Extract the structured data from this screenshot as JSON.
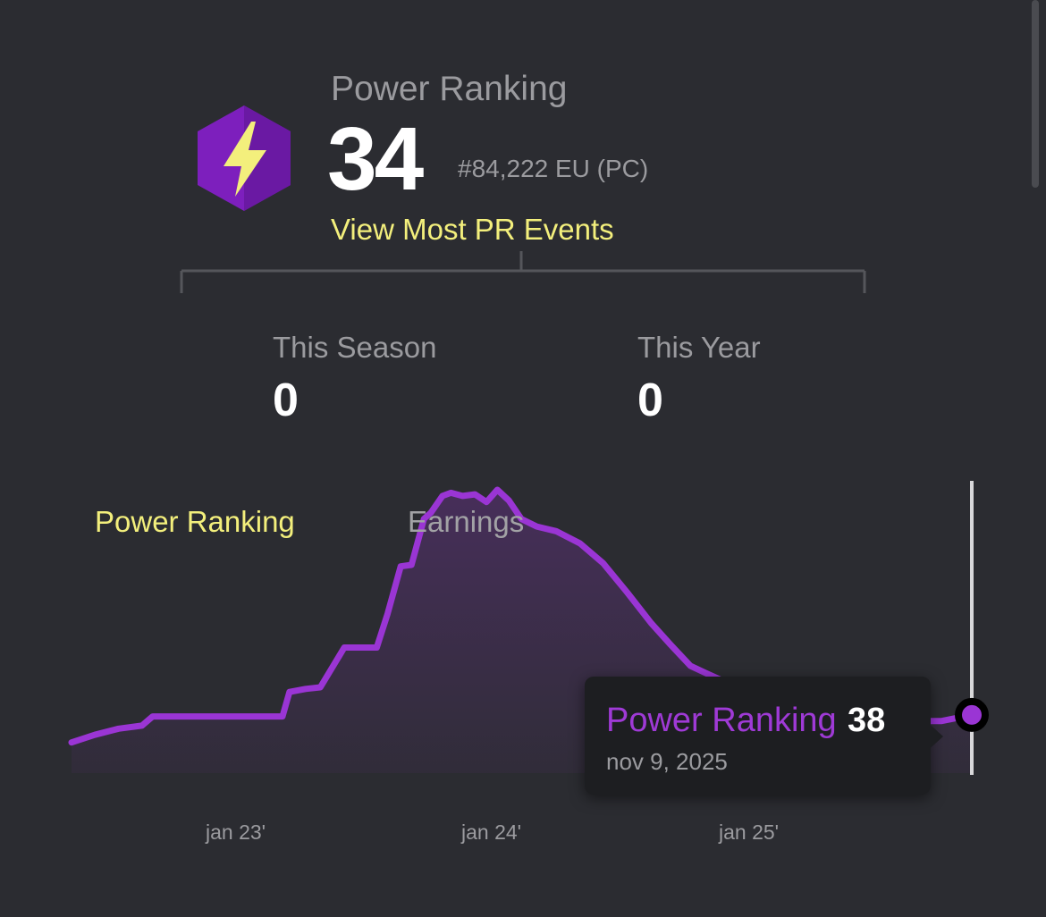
{
  "header": {
    "label": "Power Ranking",
    "value": "34",
    "rank_text": "#84,222 EU (PC)",
    "link_label": "View Most PR Events"
  },
  "stats": [
    {
      "label": "This Season",
      "value": "0"
    },
    {
      "label": "This Year",
      "value": "0"
    }
  ],
  "tabs": [
    {
      "label": "Power Ranking",
      "active": true
    },
    {
      "label": "Earnings",
      "active": false
    }
  ],
  "tooltip": {
    "series_label": "Power Ranking",
    "value": "38",
    "date": "nov 9, 2025"
  },
  "colors": {
    "background": "#2b2c31",
    "accent_yellow": "#f3ef7c",
    "line_purple": "#9a35d4",
    "badge_purple": "#7d1fbd"
  },
  "icons": {
    "badge": "lightning-hexagon-icon"
  },
  "chart_data": {
    "type": "area",
    "series": [
      {
        "x": [
          "2022-09-01",
          "2022-10-01",
          "2022-11-01",
          "2022-12-01",
          "2022-12-15",
          "2023-01-01",
          "2023-03-01",
          "2023-06-01",
          "2023-06-10",
          "2023-07-01",
          "2023-07-20",
          "2023-08-20",
          "2023-09-10",
          "2023-10-01",
          "2023-10-15",
          "2023-11-01",
          "2023-11-15",
          "2023-12-01",
          "2023-12-10",
          "2023-12-25",
          "2024-01-05",
          "2024-01-20",
          "2024-02-05",
          "2024-02-20",
          "2024-03-05",
          "2024-03-20",
          "2024-04-05",
          "2024-04-25",
          "2024-05-20",
          "2024-06-20",
          "2024-07-20",
          "2024-08-20",
          "2024-09-20",
          "2024-10-15",
          "2024-11-10",
          "2024-12-01",
          "2025-01-01",
          "2025-02-01",
          "2025-03-01",
          "2025-04-01",
          "2025-05-01",
          "2025-06-01",
          "2025-07-01",
          "2025-08-01",
          "2025-09-01",
          "2025-10-01",
          "2025-11-09"
        ],
        "values": [
          20,
          25,
          29,
          31,
          37,
          37,
          37,
          37,
          53,
          55,
          56,
          82,
          82,
          82,
          104,
          135,
          136,
          166,
          170,
          181,
          183,
          181,
          182,
          177,
          185,
          178,
          166,
          161,
          158,
          150,
          137,
          118,
          98,
          84,
          70,
          65,
          58,
          60,
          52,
          47,
          41,
          37,
          36,
          34,
          34,
          34,
          38
        ]
      }
    ],
    "x_tick_labels": [
      "jan 23'",
      "jan 24'",
      "jan 25'"
    ],
    "y_axis_visible": false,
    "grid": false
  }
}
